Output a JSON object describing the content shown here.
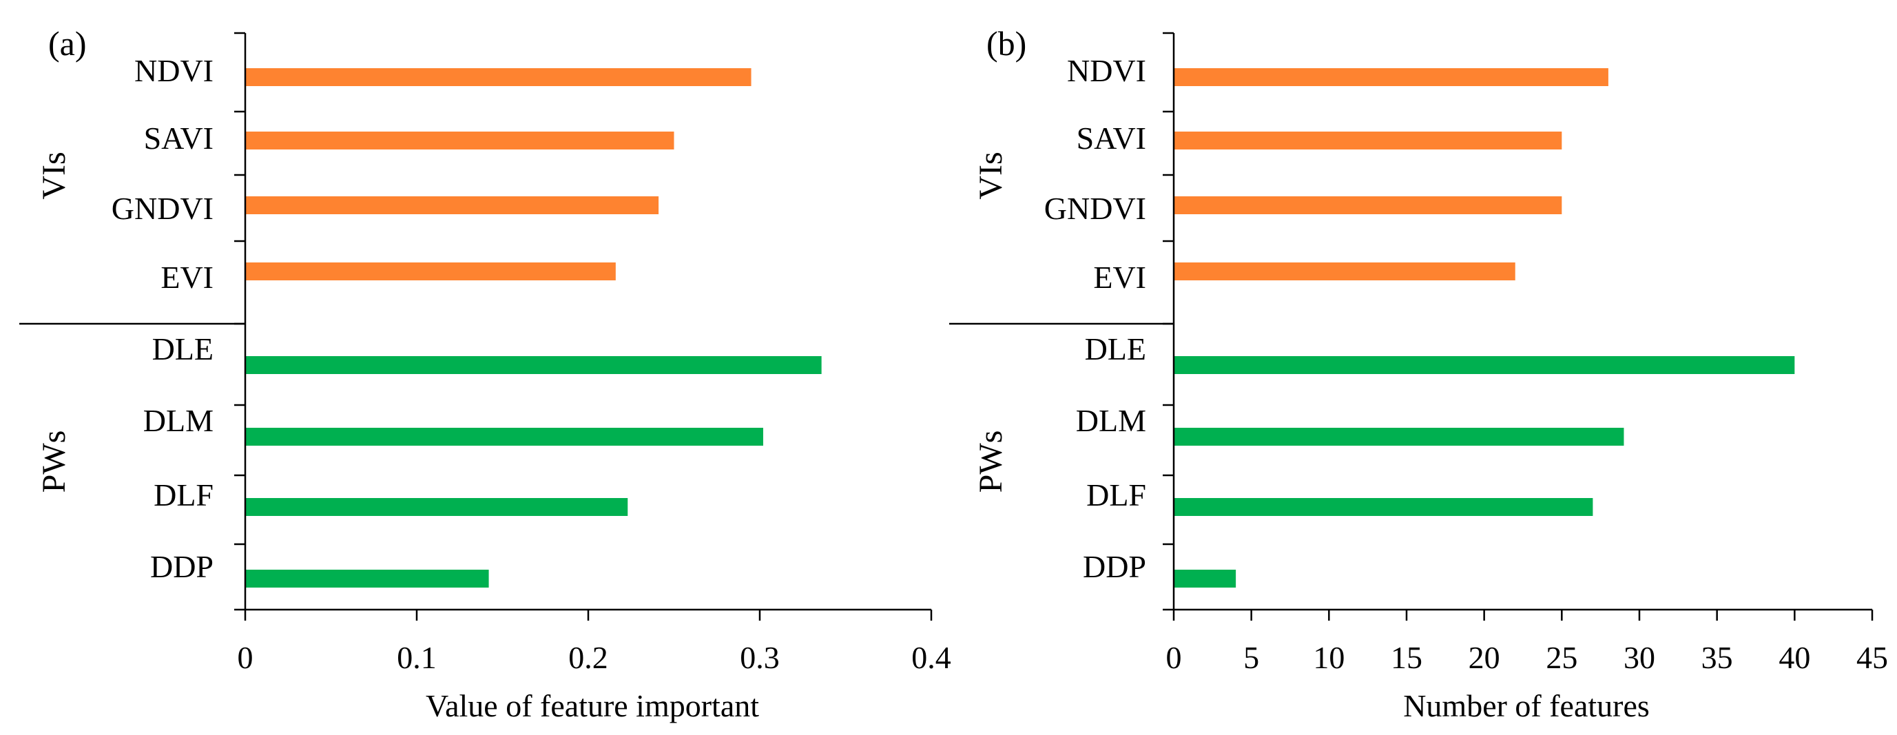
{
  "colors": {
    "vis_bar": "#fe8330",
    "pws_bar": "#00b050",
    "axis": "#000000"
  },
  "chart_data": [
    {
      "panel_label": "(a)",
      "type": "bar",
      "orientation": "horizontal",
      "xlabel": "Value of feature important",
      "xlim": [
        0,
        0.4
      ],
      "xticks": [
        0,
        0.1,
        0.2,
        0.3,
        0.4
      ],
      "xtick_labels": [
        "0",
        "0.1",
        "0.2",
        "0.3",
        "0.4"
      ],
      "groups": [
        {
          "name": "VIs",
          "color_key": "vis_bar",
          "categories": [
            "NDVI",
            "SAVI",
            "GNDVI",
            "EVI"
          ],
          "values": [
            0.295,
            0.25,
            0.241,
            0.216
          ]
        },
        {
          "name": "PWs",
          "color_key": "pws_bar",
          "categories": [
            "DLE",
            "DLM",
            "DLF",
            "DDP"
          ],
          "values": [
            0.336,
            0.302,
            0.223,
            0.142
          ]
        }
      ]
    },
    {
      "panel_label": "(b)",
      "type": "bar",
      "orientation": "horizontal",
      "xlabel": "Number of features",
      "xlim": [
        0,
        45
      ],
      "xticks": [
        0,
        5,
        10,
        15,
        20,
        25,
        30,
        35,
        40,
        45
      ],
      "xtick_labels": [
        "0",
        "5",
        "10",
        "15",
        "20",
        "25",
        "30",
        "35",
        "40",
        "45"
      ],
      "groups": [
        {
          "name": "VIs",
          "color_key": "vis_bar",
          "categories": [
            "NDVI",
            "SAVI",
            "GNDVI",
            "EVI"
          ],
          "values": [
            28,
            25,
            25,
            22
          ]
        },
        {
          "name": "PWs",
          "color_key": "pws_bar",
          "categories": [
            "DLE",
            "DLM",
            "DLF",
            "DDP"
          ],
          "values": [
            40,
            29,
            27,
            4
          ]
        }
      ]
    }
  ]
}
